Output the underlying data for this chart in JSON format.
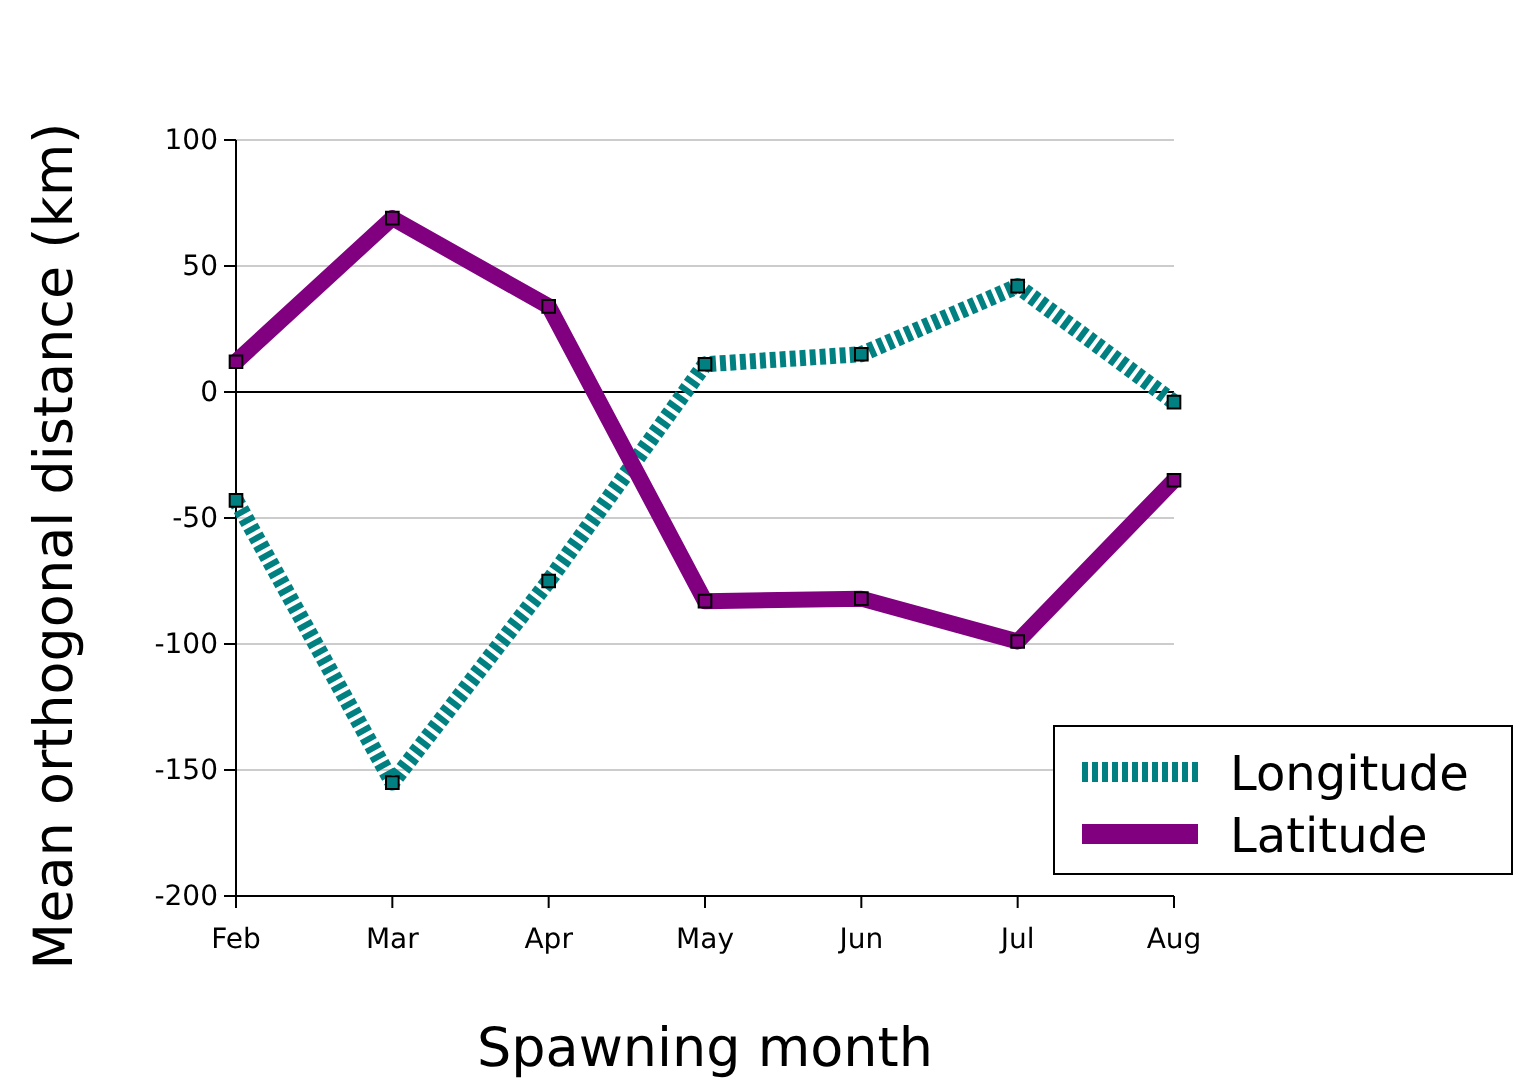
{
  "chart_data": {
    "type": "line",
    "xlabel": "Spawning month",
    "ylabel": "Mean orthogonal distance (km)",
    "categories": [
      "Feb",
      "Mar",
      "Apr",
      "May",
      "Jun",
      "Jul",
      "Aug"
    ],
    "series": [
      {
        "name": "Longitude",
        "color": "#008080",
        "line_style": "dotted",
        "values": [
          -43,
          -155,
          -75,
          11,
          15,
          42,
          -4
        ]
      },
      {
        "name": "Latitude",
        "color": "#800080",
        "line_style": "solid",
        "values": [
          12,
          69,
          34,
          -83,
          -82,
          -99,
          -35
        ]
      }
    ],
    "ylim": [
      -200,
      100
    ],
    "yticks": [
      -200,
      -150,
      -100,
      -50,
      0,
      50,
      100
    ],
    "grid": "y",
    "marker": "square",
    "legend": "bottom right",
    "ref_lines": [
      {
        "axis": "y",
        "value": 0,
        "color": "#000000"
      }
    ]
  }
}
